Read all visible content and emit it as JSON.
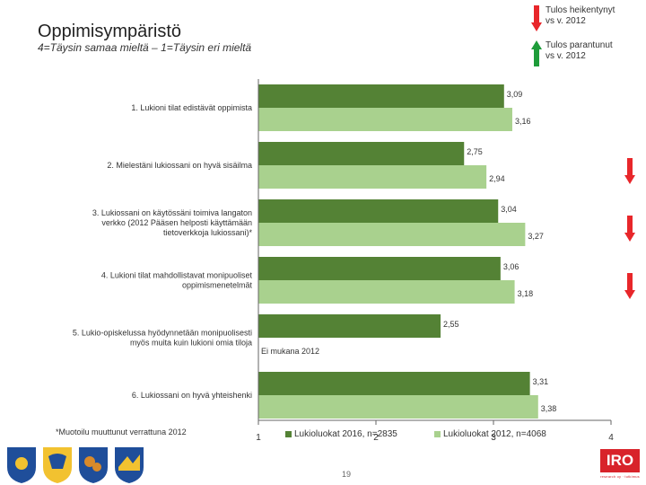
{
  "header": {
    "title": "Oppimisympäristö",
    "subtitle": "4=Täysin samaa mieltä – 1=Täysin eri mieltä"
  },
  "legend_top": {
    "worse": "Tulos heikentynyt vs v. 2012",
    "better": "Tulos parantunut vs v. 2012"
  },
  "chart_data": {
    "type": "bar",
    "orientation": "horizontal",
    "xlim": [
      1,
      4
    ],
    "x_ticks": [
      "1",
      "2",
      "3",
      "4"
    ],
    "categories": [
      "1. Lukioni tilat edistävät oppimista",
      "2. Mielestäni lukiossani on hyvä sisäilma",
      "3. Lukiossani on käytössäni toimiva langaton verkko (2012 Pääsen helposti käyttämään tietoverkkoja lukiossani)*",
      "4. Lukioni tilat mahdollistavat monipuoliset oppimismenetelmät",
      "5. Lukio-opiskelussa hyödynnetään monipuolisesti myös muita kuin lukioni omia tiloja",
      "6. Lukiossani on hyvä yhteishenki"
    ],
    "series": [
      {
        "name": "Lukioluokat 2016, n=2835",
        "color": "#548235",
        "values": [
          3.09,
          2.75,
          3.04,
          3.06,
          2.55,
          3.31
        ],
        "labels": [
          "3,09",
          "2,75",
          "3,04",
          "3,06",
          "2,55",
          "3,31"
        ]
      },
      {
        "name": "Lukioluokat 2012, n=4068",
        "color": "#a9d18e",
        "values": [
          3.16,
          2.94,
          3.27,
          3.18,
          null,
          3.38
        ],
        "labels": [
          "3,16",
          "2,94",
          "3,27",
          "3,18",
          "Ei mukana 2012",
          "3,38"
        ]
      }
    ],
    "change_markers": [
      "none",
      "down",
      "down",
      "down",
      "none",
      "none"
    ]
  },
  "footnote": "*Muotoilu muuttunut verrattuna 2012",
  "page_number": "19",
  "logo_text": "IRO",
  "logo_subtext": "research oy · tutkimus",
  "colors": {
    "down": "#e8262a",
    "up": "#1e9c3a",
    "bar2016": "#548235",
    "bar2012": "#a9d18e"
  }
}
